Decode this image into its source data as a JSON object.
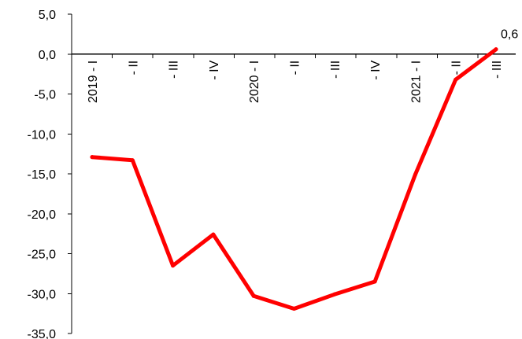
{
  "chart_data": {
    "type": "line",
    "categories": [
      "2019 - I",
      "- II",
      "- III",
      "- IV",
      "2020 - I",
      "- II",
      "- III",
      "- IV",
      "2021 - I",
      "- II",
      "- III"
    ],
    "series": [
      {
        "values": [
          -12.9,
          -13.3,
          -26.5,
          -22.6,
          -30.3,
          -31.9,
          -30.1,
          -28.5,
          -15.1,
          -3.2,
          0.6
        ],
        "color": "#ff0000"
      }
    ],
    "data_labels": [
      {
        "index": 10,
        "text": "0,6"
      }
    ],
    "ylim": [
      -35,
      5
    ],
    "y_ticks": [
      {
        "value": 5,
        "label": "5,0"
      },
      {
        "value": 0,
        "label": "0,0"
      },
      {
        "value": -5,
        "label": "-5,0"
      },
      {
        "value": -10,
        "label": "-10,0"
      },
      {
        "value": -15,
        "label": "-15,0"
      },
      {
        "value": -20,
        "label": "-20,0"
      },
      {
        "value": -25,
        "label": "-25,0"
      },
      {
        "value": -30,
        "label": "-30,0"
      },
      {
        "value": -35,
        "label": "-35,0"
      }
    ],
    "title": "",
    "xlabel": "",
    "ylabel": "",
    "grid": false,
    "legend": "none"
  }
}
